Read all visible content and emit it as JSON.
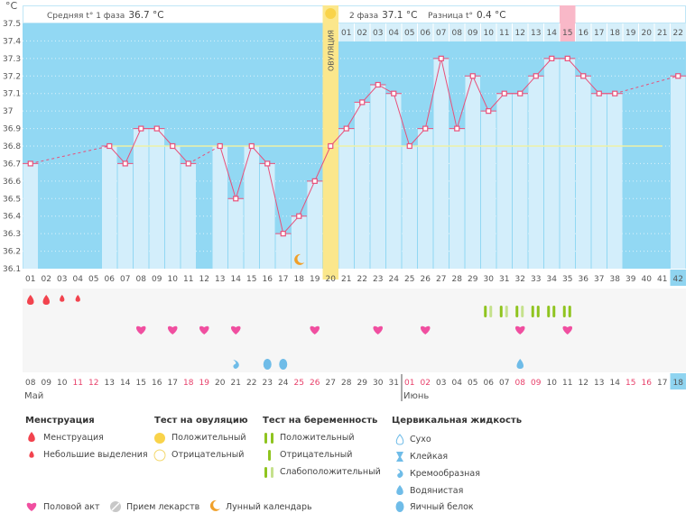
{
  "header": {
    "unit_label": "°C",
    "phase1_label": "Средняя t° 1 фаза",
    "phase1_value": "36.7 °C",
    "phase2_label": "2 фаза",
    "phase2_value": "37.1 °C",
    "diff_label": "Разница t°",
    "diff_value": "0.4 °C",
    "ovulation_label": "ОВУЛЯЦИЯ"
  },
  "colors": {
    "chart_bg": "#92d8f3",
    "bar_fill": "#d3eefb",
    "line": "#e8507a",
    "coverline": "#eef0a6",
    "ovulation": "#fbe78c",
    "ovulation_dot": "#f9d34a",
    "highlight_day": "#f9b8c8",
    "today": "#8fd4f0",
    "menstruation": "#f2434e",
    "heart": "#f04fa0",
    "cervical": "#6fbce8",
    "test_positive": "#8fc41f",
    "test_weak": "#c5e18c",
    "weekend": "#e8406a"
  },
  "chart_data": {
    "type": "line",
    "title": "",
    "ylabel": "°C",
    "ylim": [
      36.1,
      37.5
    ],
    "yticks": [
      "37.5",
      "37.4",
      "37.3",
      "37.2",
      "37.1",
      "37",
      "36.9",
      "36.8",
      "36.7",
      "36.6",
      "36.5",
      "36.4",
      "36.3",
      "36.2",
      "36.1"
    ],
    "coverline": 36.8,
    "ovulation_day": 20,
    "highlight_day_phase2": 15,
    "today_cycle_day": 42,
    "cycle_days": [
      "01",
      "02",
      "03",
      "04",
      "05",
      "06",
      "07",
      "08",
      "09",
      "10",
      "11",
      "12",
      "13",
      "14",
      "15",
      "16",
      "17",
      "18",
      "19",
      "20",
      "21",
      "22",
      "23",
      "24",
      "25",
      "26",
      "27",
      "28",
      "29",
      "30",
      "31",
      "32",
      "33",
      "34",
      "35",
      "36",
      "37",
      "38",
      "39",
      "40",
      "41",
      "42"
    ],
    "phase2_days": [
      "01",
      "02",
      "03",
      "04",
      "05",
      "06",
      "07",
      "08",
      "09",
      "10",
      "11",
      "12",
      "13",
      "14",
      "15",
      "16",
      "17",
      "18",
      "19",
      "20",
      "21",
      "22"
    ],
    "temperatures": [
      36.7,
      null,
      null,
      null,
      null,
      36.8,
      36.7,
      36.9,
      36.9,
      36.8,
      36.7,
      null,
      36.8,
      36.5,
      36.8,
      36.7,
      36.3,
      36.4,
      36.6,
      36.8,
      36.9,
      37.05,
      37.15,
      37.1,
      36.8,
      36.9,
      37.3,
      36.9,
      37.2,
      37.0,
      37.1,
      37.1,
      37.2,
      37.3,
      37.3,
      37.2,
      37.1,
      37.1,
      null,
      null,
      null,
      37.2
    ],
    "calendar_dates": [
      "08",
      "09",
      "10",
      "11",
      "12",
      "13",
      "14",
      "15",
      "16",
      "17",
      "18",
      "19",
      "20",
      "21",
      "22",
      "23",
      "24",
      "25",
      "26",
      "27",
      "28",
      "29",
      "30",
      "31",
      "01",
      "02",
      "03",
      "04",
      "05",
      "06",
      "07",
      "08",
      "09",
      "10",
      "11",
      "12",
      "13",
      "14",
      "15",
      "16",
      "17",
      "18"
    ],
    "weekend_indices": [
      3,
      4,
      10,
      11,
      17,
      18,
      24,
      25,
      31,
      32,
      38,
      39
    ],
    "months": [
      {
        "label": "Май",
        "start_index": 0
      },
      {
        "label": "Июнь",
        "start_index": 24
      }
    ],
    "moon_day": 18,
    "menstruation": [
      {
        "day": 1,
        "type": "heavy"
      },
      {
        "day": 2,
        "type": "heavy"
      },
      {
        "day": 3,
        "type": "light"
      },
      {
        "day": 4,
        "type": "light"
      }
    ],
    "pregnancy_tests": [
      {
        "day": 30,
        "type": "weak"
      },
      {
        "day": 31,
        "type": "weak"
      },
      {
        "day": 32,
        "type": "weak"
      },
      {
        "day": 33,
        "type": "positive"
      },
      {
        "day": 34,
        "type": "positive"
      },
      {
        "day": 35,
        "type": "positive"
      }
    ],
    "intercourse_days": [
      8,
      10,
      12,
      14,
      19,
      23,
      26,
      32,
      35
    ],
    "cervical_fluid": [
      {
        "day": 14,
        "type": "creamy"
      },
      {
        "day": 16,
        "type": "eggwhite"
      },
      {
        "day": 17,
        "type": "eggwhite"
      },
      {
        "day": 32,
        "type": "watery"
      }
    ]
  },
  "legend": {
    "menstruation": {
      "title": "Менструация",
      "items": [
        "Менструация",
        "Небольшие выделения"
      ]
    },
    "ovulation_test": {
      "title": "Тест на овуляцию",
      "items": [
        "Положительный",
        "Отрицательный"
      ]
    },
    "pregnancy_test": {
      "title": "Тест на беременность",
      "items": [
        "Положительный",
        "Отрицательный",
        "Слабоположительный"
      ]
    },
    "cervical_fluid": {
      "title": "Цервикальная жидкость",
      "items": [
        "Сухо",
        "Клейкая",
        "Кремообразная",
        "Водянистая",
        "Яичный белок"
      ]
    },
    "other": [
      "Половой акт",
      "Прием лекарств",
      "Лунный календарь"
    ]
  }
}
